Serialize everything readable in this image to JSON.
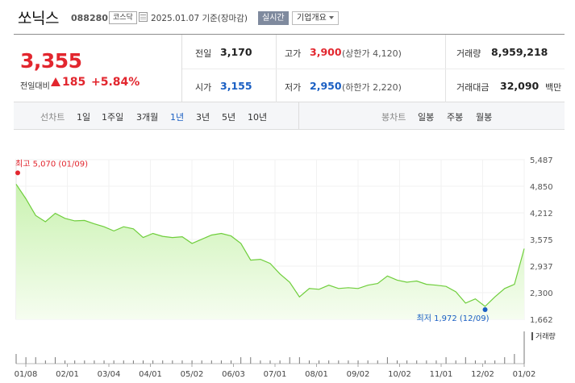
{
  "header": {
    "name": "쏘닉스",
    "code": "088280",
    "market": "코스닥",
    "date": "2025.01.07 기준(장마감)",
    "realtime": "실시간",
    "company_overview": "기업개요"
  },
  "quote": {
    "price": "3,355",
    "change_label": "전일대비",
    "change_value": "185",
    "change_pct": "+5.84%",
    "prev_close_label": "전일",
    "prev_close": "3,170",
    "high_label": "고가",
    "high": "3,900",
    "upper_limit": "(상한가 4,120)",
    "volume_label": "거래량",
    "volume": "8,959,218",
    "open_label": "시가",
    "open": "3,155",
    "low_label": "저가",
    "low": "2,950",
    "lower_limit": "(하한가 2,220)",
    "amount_label": "거래대금",
    "amount": "32,090",
    "amount_unit": "백만"
  },
  "tabs": {
    "line_title": "선차트",
    "line_periods": [
      "1일",
      "1주일",
      "3개월",
      "1년",
      "3년",
      "5년",
      "10년"
    ],
    "candle_title": "봉차트",
    "candle_periods": [
      "일봉",
      "주봉",
      "월봉"
    ],
    "active": "1년"
  },
  "colors": {
    "up": "#e2262e",
    "down": "#1a5fc3",
    "line": "#6fce3c",
    "fill_top": "#c9f2b0",
    "fill_bottom": "#f6fdf0"
  },
  "chart_data": {
    "type": "area",
    "x": [
      "01/08",
      "01/15",
      "01/22",
      "01/29",
      "02/05",
      "02/12",
      "02/19",
      "02/26",
      "03/04",
      "03/11",
      "03/18",
      "03/25",
      "04/01",
      "04/08",
      "04/15",
      "04/22",
      "04/29",
      "05/06",
      "05/13",
      "05/20",
      "05/27",
      "06/03",
      "06/10",
      "06/17",
      "06/24",
      "07/01",
      "07/08",
      "07/15",
      "07/22",
      "07/29",
      "08/05",
      "08/12",
      "08/19",
      "08/26",
      "09/02",
      "09/09",
      "09/16",
      "09/23",
      "09/30",
      "10/07",
      "10/14",
      "10/21",
      "10/28",
      "11/04",
      "11/11",
      "11/18",
      "11/25",
      "12/02",
      "12/09",
      "12/16",
      "12/23",
      "12/30",
      "01/07"
    ],
    "y": [
      4900,
      4550,
      4150,
      4000,
      4200,
      4080,
      4020,
      4030,
      3950,
      3880,
      3780,
      3880,
      3830,
      3620,
      3720,
      3650,
      3620,
      3640,
      3480,
      3580,
      3680,
      3720,
      3660,
      3480,
      3080,
      3100,
      3000,
      2750,
      2550,
      2200,
      2400,
      2380,
      2480,
      2400,
      2420,
      2400,
      2480,
      2520,
      2700,
      2600,
      2550,
      2580,
      2500,
      2480,
      2450,
      2320,
      2050,
      2150,
      1972,
      2200,
      2400,
      2500,
      3355
    ],
    "volume": [
      3,
      2,
      2,
      1,
      2,
      1,
      1,
      1,
      1,
      1,
      1,
      1,
      1,
      1,
      1,
      1,
      1,
      1,
      1,
      1,
      1,
      1,
      1,
      2,
      2,
      1,
      1,
      1,
      2,
      2,
      1,
      1,
      1,
      1,
      1,
      1,
      1,
      1,
      2,
      1,
      1,
      1,
      1,
      1,
      2,
      1,
      2,
      1,
      1,
      1,
      2,
      3,
      10
    ],
    "ylim": [
      1662,
      5487
    ],
    "y_ticks": [
      "5,487",
      "4,850",
      "4,212",
      "3,575",
      "2,937",
      "2,300",
      "1,662"
    ],
    "x_ticks": [
      "01/08",
      "02/01",
      "03/04",
      "04/01",
      "05/02",
      "06/03",
      "07/01",
      "08/01",
      "09/02",
      "10/02",
      "11/01",
      "12/02",
      "01/02"
    ],
    "max_label": "최고 5,070 (01/09)",
    "min_label": "최저 1,972 (12/09)",
    "volume_label": "거래량"
  }
}
